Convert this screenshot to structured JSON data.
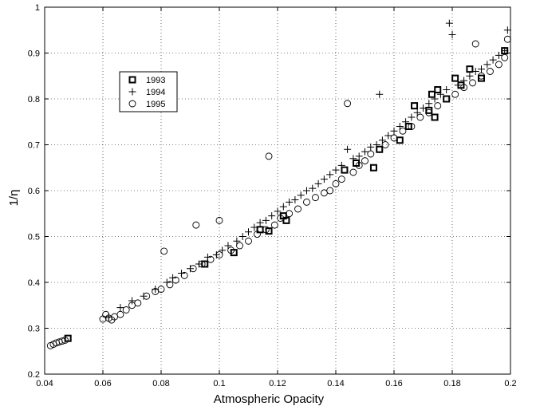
{
  "chart_data": {
    "type": "scatter",
    "title": "",
    "xlabel": "Atmospheric Opacity",
    "ylabel": "1/η",
    "xlim": [
      0.04,
      0.2
    ],
    "ylim": [
      0.2,
      1.0
    ],
    "xticks": [
      "0.04",
      "0.06",
      "0.08",
      "0.1",
      "0.12",
      "0.14",
      "0.16",
      "0.18",
      "0.2"
    ],
    "yticks": [
      "0.2",
      "0.3",
      "0.4",
      "0.5",
      "0.6",
      "0.7",
      "0.8",
      "0.9",
      "1"
    ],
    "grid": true,
    "legend_position": "upper-left",
    "series": [
      {
        "name": "1993",
        "marker": "square",
        "x": [
          0.048,
          0.095,
          0.105,
          0.114,
          0.117,
          0.122,
          0.123,
          0.143,
          0.147,
          0.153,
          0.155,
          0.162,
          0.165,
          0.167,
          0.172,
          0.173,
          0.174,
          0.175,
          0.178,
          0.181,
          0.183,
          0.186,
          0.19,
          0.198
        ],
        "y": [
          0.278,
          0.44,
          0.465,
          0.515,
          0.512,
          0.545,
          0.535,
          0.645,
          0.66,
          0.65,
          0.69,
          0.71,
          0.74,
          0.785,
          0.775,
          0.81,
          0.76,
          0.82,
          0.8,
          0.845,
          0.83,
          0.865,
          0.845,
          0.905
        ]
      },
      {
        "name": "1994",
        "marker": "plus",
        "x": [
          0.062,
          0.066,
          0.07,
          0.074,
          0.078,
          0.082,
          0.084,
          0.087,
          0.09,
          0.093,
          0.096,
          0.099,
          0.101,
          0.103,
          0.106,
          0.108,
          0.11,
          0.112,
          0.114,
          0.116,
          0.118,
          0.12,
          0.122,
          0.124,
          0.126,
          0.128,
          0.13,
          0.132,
          0.134,
          0.136,
          0.138,
          0.14,
          0.142,
          0.144,
          0.146,
          0.148,
          0.15,
          0.152,
          0.154,
          0.155,
          0.156,
          0.158,
          0.16,
          0.162,
          0.164,
          0.166,
          0.168,
          0.17,
          0.172,
          0.174,
          0.176,
          0.178,
          0.179,
          0.18,
          0.182,
          0.184,
          0.186,
          0.188,
          0.19,
          0.192,
          0.194,
          0.196,
          0.198,
          0.199
        ],
        "y": [
          0.325,
          0.345,
          0.36,
          0.37,
          0.385,
          0.4,
          0.41,
          0.42,
          0.43,
          0.44,
          0.455,
          0.46,
          0.47,
          0.48,
          0.49,
          0.5,
          0.51,
          0.52,
          0.53,
          0.535,
          0.545,
          0.555,
          0.565,
          0.575,
          0.58,
          0.59,
          0.6,
          0.605,
          0.615,
          0.625,
          0.635,
          0.645,
          0.655,
          0.69,
          0.67,
          0.675,
          0.685,
          0.695,
          0.7,
          0.81,
          0.71,
          0.72,
          0.73,
          0.74,
          0.75,
          0.76,
          0.77,
          0.78,
          0.79,
          0.8,
          0.81,
          0.82,
          0.965,
          0.94,
          0.83,
          0.84,
          0.85,
          0.86,
          0.865,
          0.875,
          0.885,
          0.895,
          0.905,
          0.95
        ]
      },
      {
        "name": "1995",
        "marker": "circle",
        "x": [
          0.042,
          0.043,
          0.044,
          0.045,
          0.046,
          0.047,
          0.06,
          0.061,
          0.062,
          0.063,
          0.064,
          0.066,
          0.068,
          0.07,
          0.072,
          0.075,
          0.078,
          0.08,
          0.081,
          0.083,
          0.085,
          0.088,
          0.091,
          0.092,
          0.094,
          0.097,
          0.1,
          0.1,
          0.104,
          0.107,
          0.11,
          0.113,
          0.116,
          0.117,
          0.119,
          0.121,
          0.124,
          0.127,
          0.13,
          0.133,
          0.136,
          0.138,
          0.14,
          0.142,
          0.144,
          0.146,
          0.148,
          0.15,
          0.152,
          0.155,
          0.157,
          0.16,
          0.163,
          0.166,
          0.169,
          0.172,
          0.175,
          0.178,
          0.181,
          0.184,
          0.187,
          0.188,
          0.19,
          0.193,
          0.196,
          0.198,
          0.199
        ],
        "y": [
          0.262,
          0.265,
          0.268,
          0.27,
          0.272,
          0.274,
          0.32,
          0.33,
          0.322,
          0.318,
          0.325,
          0.33,
          0.34,
          0.35,
          0.355,
          0.37,
          0.38,
          0.385,
          0.468,
          0.395,
          0.405,
          0.415,
          0.43,
          0.525,
          0.44,
          0.45,
          0.46,
          0.535,
          0.47,
          0.48,
          0.49,
          0.505,
          0.515,
          0.675,
          0.525,
          0.54,
          0.55,
          0.56,
          0.575,
          0.585,
          0.595,
          0.6,
          0.615,
          0.625,
          0.79,
          0.64,
          0.655,
          0.665,
          0.68,
          0.69,
          0.7,
          0.715,
          0.73,
          0.74,
          0.76,
          0.77,
          0.785,
          0.8,
          0.81,
          0.825,
          0.835,
          0.92,
          0.85,
          0.86,
          0.875,
          0.89,
          0.93
        ]
      }
    ]
  }
}
